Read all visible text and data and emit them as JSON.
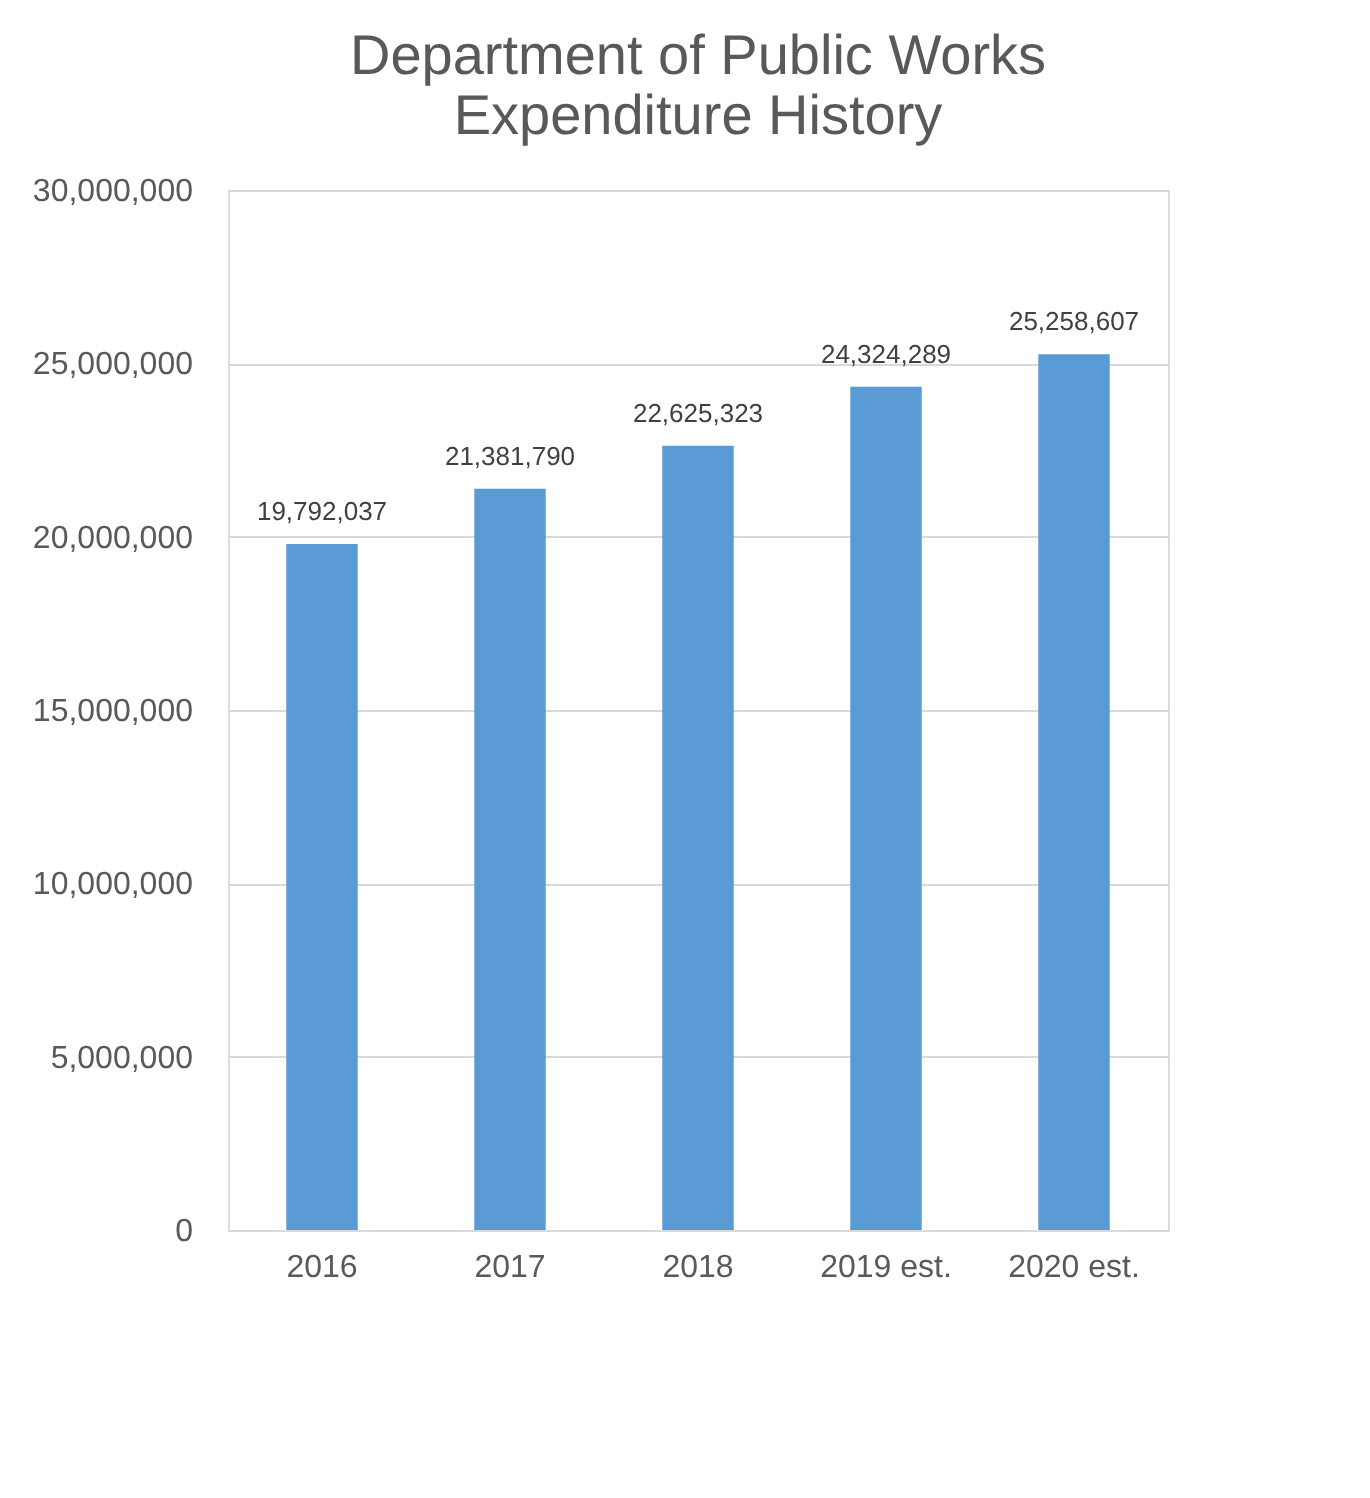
{
  "chart_data": {
    "type": "bar",
    "title": "Department of Public Works\nExpenditure History",
    "categories": [
      "2016",
      "2017",
      "2018",
      "2019 est.",
      "2020 est."
    ],
    "values": [
      19792037,
      21381790,
      22625323,
      24324289,
      25258607
    ],
    "value_labels": [
      "19,792,037",
      "21,381,790",
      "22,625,323",
      "24,324,289",
      "25,258,607"
    ],
    "color": "#5b9bd5",
    "ylim": [
      0,
      30000000
    ],
    "yticks": [
      {
        "value": 0,
        "label": "0"
      },
      {
        "value": 5000000,
        "label": "5,000,000"
      },
      {
        "value": 10000000,
        "label": "10,000,000"
      },
      {
        "value": 15000000,
        "label": "15,000,000"
      },
      {
        "value": 20000000,
        "label": "20,000,000"
      },
      {
        "value": 25000000,
        "label": "25,000,000"
      },
      {
        "value": 30000000,
        "label": "30,000,000"
      }
    ],
    "grid": "y"
  }
}
